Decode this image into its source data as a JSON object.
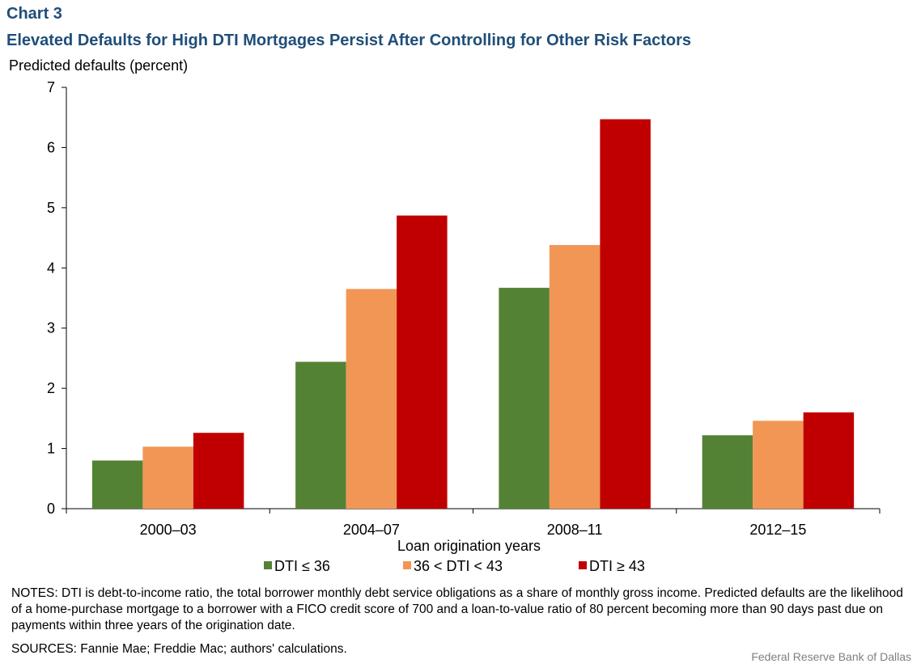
{
  "header": {
    "label": "Chart 3",
    "title": "Elevated Defaults for High DTI Mortgages Persist After Controlling for Other Risk Factors"
  },
  "chart_data": {
    "type": "bar",
    "ylabel": "Predicted defaults (percent)",
    "xlabel": "Loan origination  years",
    "categories": [
      "2000–03",
      "2004–07",
      "2008–11",
      "2012–15"
    ],
    "ylim": [
      0,
      7
    ],
    "yticks": [
      0,
      1,
      2,
      3,
      4,
      5,
      6,
      7
    ],
    "grid": false,
    "legend_position": "bottom",
    "series": [
      {
        "name": "DTI ≤ 36",
        "color": "#548235",
        "values": [
          0.8,
          2.44,
          3.67,
          1.22
        ]
      },
      {
        "name": "36 < DTI < 43",
        "color": "#f29655",
        "values": [
          1.03,
          3.65,
          4.38,
          1.46
        ]
      },
      {
        "name": "DTI ≥ 43",
        "color": "#c00000",
        "values": [
          1.26,
          4.87,
          6.47,
          1.6
        ]
      }
    ]
  },
  "footer": {
    "notes": "NOTES: DTI is debt-to-income  ratio, the total borrower monthly  debt service obligations as a share of monthly  gross income. Predicted defaults are the likelihood of a home-purchase  mortgage to a borrower with a FICO credit score of 700 and a loan-to-value ratio of 80 percent becoming more than 90 days past due on payments  within three years of the origination date.",
    "sources": "SOURCES:  Fannie Mae; Freddie Mac; authors' calculations.",
    "credit": "Federal Reserve  Bank of Dallas"
  }
}
